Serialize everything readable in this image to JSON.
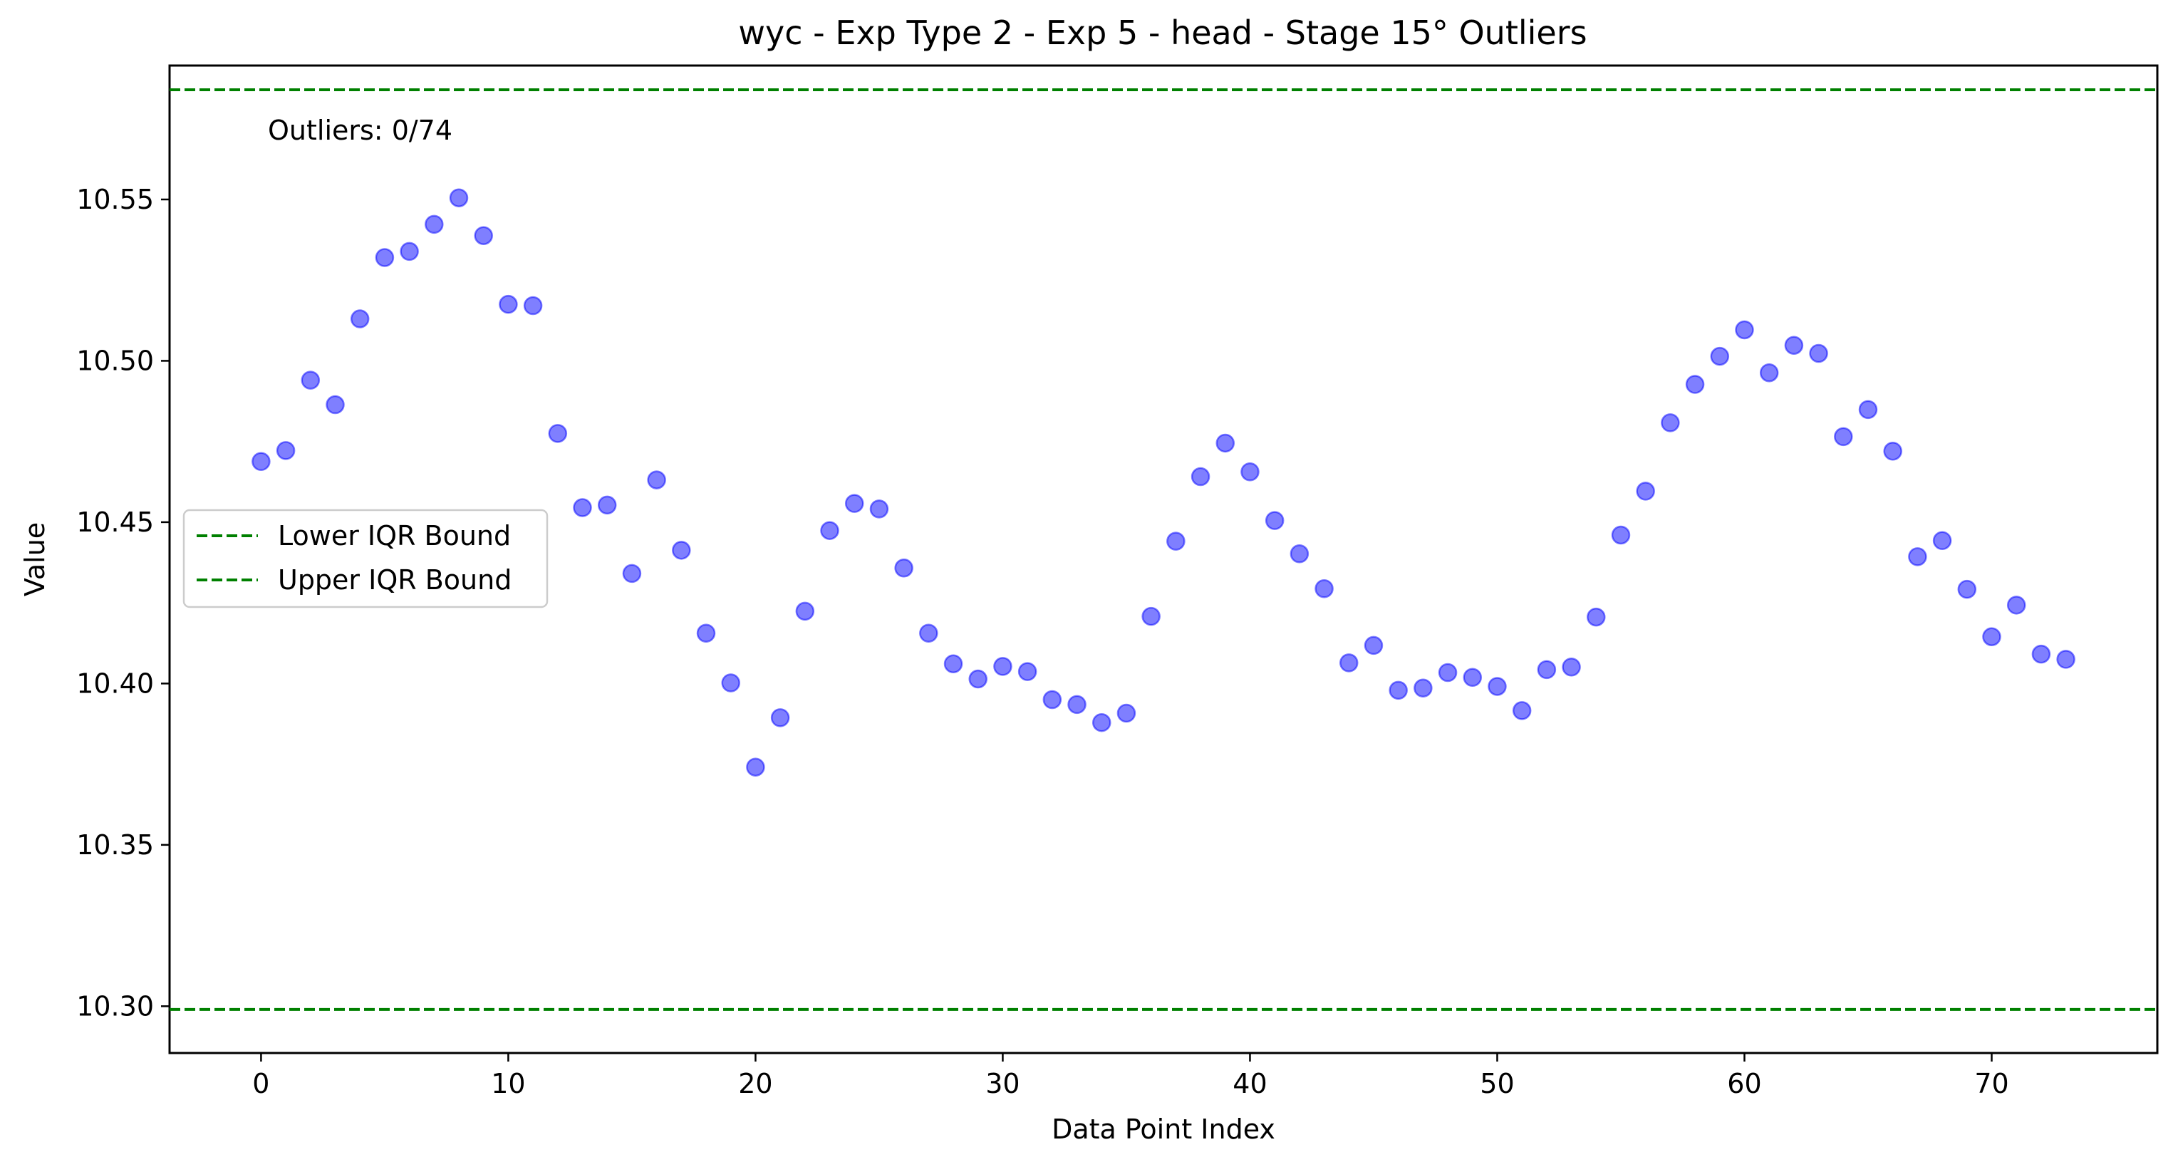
{
  "chart_data": {
    "type": "scatter",
    "title": "wyc - Exp Type 2 - Exp 5 - head - Stage 15° Outliers",
    "xlabel": "Data Point Index",
    "ylabel": "Value",
    "xlim": [
      -3.7,
      76.7
    ],
    "ylim": [
      10.2855,
      10.5915
    ],
    "x_ticks": [
      0,
      10,
      20,
      30,
      40,
      50,
      60,
      70
    ],
    "y_ticks": [
      10.3,
      10.35,
      10.4,
      10.45,
      10.5,
      10.55
    ],
    "x_tick_labels": [
      "0",
      "10",
      "20",
      "30",
      "40",
      "50",
      "60",
      "70"
    ],
    "y_tick_labels": [
      "10.30",
      "10.35",
      "10.40",
      "10.45",
      "10.50",
      "10.55"
    ],
    "grid": false,
    "legend_position": "center-left",
    "annotation": "Outliers: 0/74",
    "point_color": "#0000ff",
    "bound_color": "#008000",
    "lower_bound": 10.299,
    "upper_bound": 10.584,
    "legend": [
      {
        "label": "Lower IQR Bound",
        "color": "#008000",
        "style": "dashed"
      },
      {
        "label": "Upper IQR Bound",
        "color": "#008000",
        "style": "dashed"
      }
    ],
    "series": [
      {
        "x": [
          0,
          1,
          2,
          3,
          4,
          5,
          6,
          7,
          8,
          9,
          10,
          11,
          12,
          13,
          14,
          15,
          16,
          17,
          18,
          19,
          20,
          21,
          22,
          23,
          24,
          25,
          26,
          27,
          28,
          29,
          30,
          31,
          32,
          33,
          34,
          35,
          36,
          37,
          38,
          39,
          40,
          41,
          42,
          43,
          44,
          45,
          46,
          47,
          48,
          49,
          50,
          51,
          52,
          53,
          54,
          55,
          56,
          57,
          58,
          59,
          60,
          61,
          62,
          63,
          64,
          65,
          66,
          67,
          68,
          69,
          70,
          71,
          72,
          73
        ],
        "values": [
          10.4688,
          10.4722,
          10.494,
          10.4864,
          10.513,
          10.532,
          10.5339,
          10.5423,
          10.5505,
          10.5388,
          10.5175,
          10.5171,
          10.4775,
          10.4545,
          10.4553,
          10.4341,
          10.4631,
          10.4413,
          10.4156,
          10.4002,
          10.3741,
          10.3894,
          10.4224,
          10.4474,
          10.4558,
          10.4541,
          10.4358,
          10.4156,
          10.4061,
          10.4014,
          10.4053,
          10.4037,
          10.395,
          10.3935,
          10.3879,
          10.3908,
          10.4208,
          10.4441,
          10.4641,
          10.4745,
          10.4656,
          10.4505,
          10.4402,
          10.4294,
          10.4064,
          10.4118,
          10.3979,
          10.3986,
          10.4034,
          10.4019,
          10.3991,
          10.3916,
          10.4043,
          10.4051,
          10.4206,
          10.446,
          10.4596,
          10.4808,
          10.4927,
          10.5014,
          10.5096,
          10.4963,
          10.5048,
          10.5023,
          10.4765,
          10.4849,
          10.472,
          10.4393,
          10.4443,
          10.4292,
          10.4145,
          10.4243,
          10.4091,
          10.4075
        ]
      }
    ]
  }
}
